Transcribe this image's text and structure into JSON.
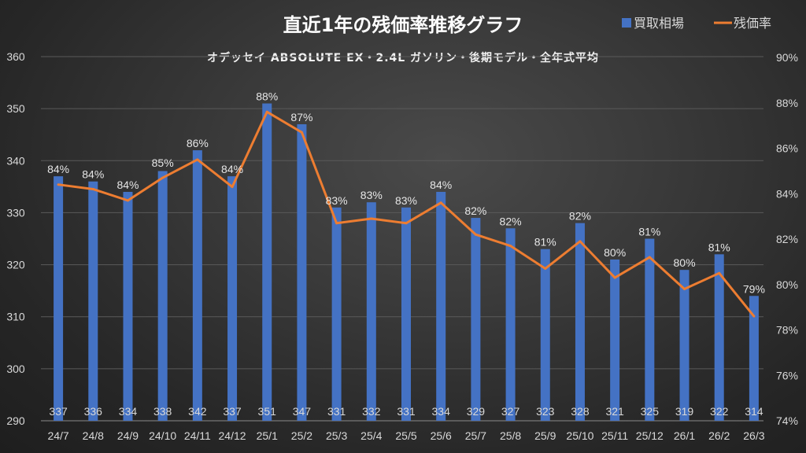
{
  "chart_data": {
    "type": "bar+line",
    "title": "直近1年の残価率推移グラフ",
    "subtitle": "オデッセイ ABSOLUTE EX・2.4L ガソリン・後期モデル・全年式平均",
    "categories": [
      "24/7",
      "24/8",
      "24/9",
      "24/10",
      "24/11",
      "24/12",
      "25/1",
      "25/2",
      "25/3",
      "25/4",
      "25/5",
      "25/6",
      "25/7",
      "25/8",
      "25/9",
      "25/10",
      "25/11",
      "25/12",
      "26/1",
      "26/2",
      "26/3"
    ],
    "series": [
      {
        "name": "買取相場",
        "type": "bar",
        "axis": "left",
        "color": "#4472c4",
        "values": [
          337,
          336,
          334,
          338,
          342,
          337,
          351,
          347,
          331,
          332,
          331,
          334,
          329,
          327,
          323,
          328,
          321,
          325,
          319,
          322,
          314
        ],
        "labels": [
          "337",
          "336",
          "334",
          "338",
          "342",
          "337",
          "351",
          "347",
          "331",
          "332",
          "331",
          "334",
          "329",
          "327",
          "323",
          "328",
          "321",
          "325",
          "319",
          "322",
          "314"
        ]
      },
      {
        "name": "残価率",
        "type": "line",
        "axis": "right",
        "color": "#ed7d31",
        "values": [
          84.4,
          84.2,
          83.7,
          84.7,
          85.5,
          84.3,
          87.6,
          86.7,
          82.7,
          82.9,
          82.7,
          83.6,
          82.2,
          81.7,
          80.7,
          81.9,
          80.3,
          81.2,
          79.8,
          80.5,
          78.6
        ],
        "labels": [
          "84%",
          "84%",
          "84%",
          "85%",
          "86%",
          "84%",
          "88%",
          "87%",
          "83%",
          "83%",
          "83%",
          "84%",
          "82%",
          "82%",
          "81%",
          "82%",
          "80%",
          "81%",
          "80%",
          "81%",
          "79%"
        ]
      }
    ],
    "left_axis": {
      "ylim": [
        290,
        360
      ],
      "ticks": [
        "290",
        "300",
        "310",
        "320",
        "330",
        "340",
        "350",
        "360"
      ]
    },
    "right_axis": {
      "ylim": [
        74,
        90
      ],
      "ticks": [
        "74%",
        "76%",
        "78%",
        "80%",
        "82%",
        "84%",
        "86%",
        "88%",
        "90%"
      ]
    },
    "grid": true,
    "legend": {
      "position": "top-right",
      "items": [
        "買取相場",
        "残価率"
      ]
    }
  }
}
